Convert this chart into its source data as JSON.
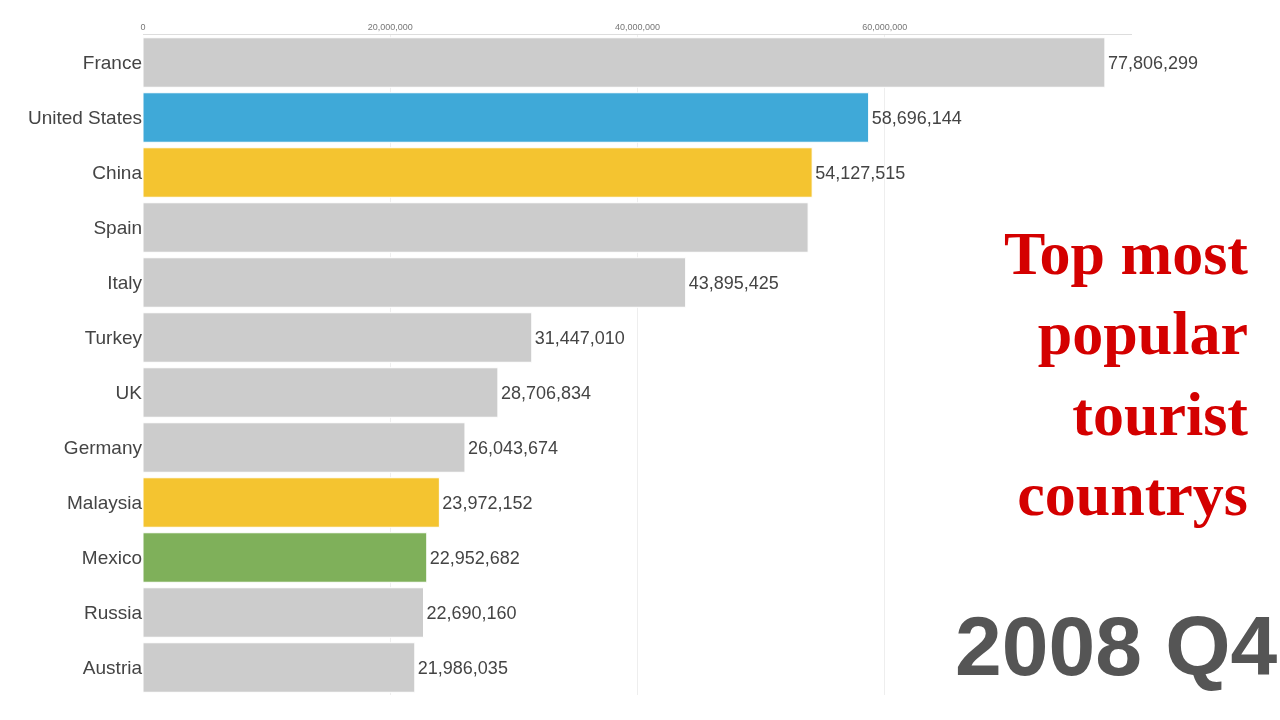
{
  "chart_data": {
    "type": "bar",
    "orientation": "horizontal",
    "title": "Top most popular tourist countrys",
    "categories": [
      "France",
      "United States",
      "China",
      "Spain",
      "Italy",
      "Turkey",
      "UK",
      "Germany",
      "Malaysia",
      "Mexico",
      "Russia",
      "Austria"
    ],
    "values": [
      77806299,
      58696144,
      54127515,
      53800000,
      43895425,
      31447010,
      28706834,
      26043674,
      23972152,
      22952682,
      22690160,
      21986035
    ],
    "value_labels": [
      "77,806,299",
      "58,696,144",
      "54,127,515",
      null,
      "43,895,425",
      "31,447,010",
      "28,706,834",
      "26,043,674",
      "23,972,152",
      "22,952,682",
      "22,690,160",
      "21,986,035"
    ],
    "colors": [
      "#cccccc",
      "#3fa9d8",
      "#f4c430",
      "#cccccc",
      "#cccccc",
      "#cccccc",
      "#cccccc",
      "#cccccc",
      "#f4c430",
      "#7fb05a",
      "#cccccc",
      "#cccccc"
    ],
    "xlim": [
      0,
      80000000
    ],
    "xticks": [
      0,
      {
        "value": 20000000,
        "label": "20,000,000"
      },
      {
        "value": 40000000,
        "label": "40,000,000"
      },
      {
        "value": 60000000,
        "label": "60,000,000"
      }
    ],
    "grid": "x",
    "annotations": [
      "2008 Q4"
    ]
  }
}
